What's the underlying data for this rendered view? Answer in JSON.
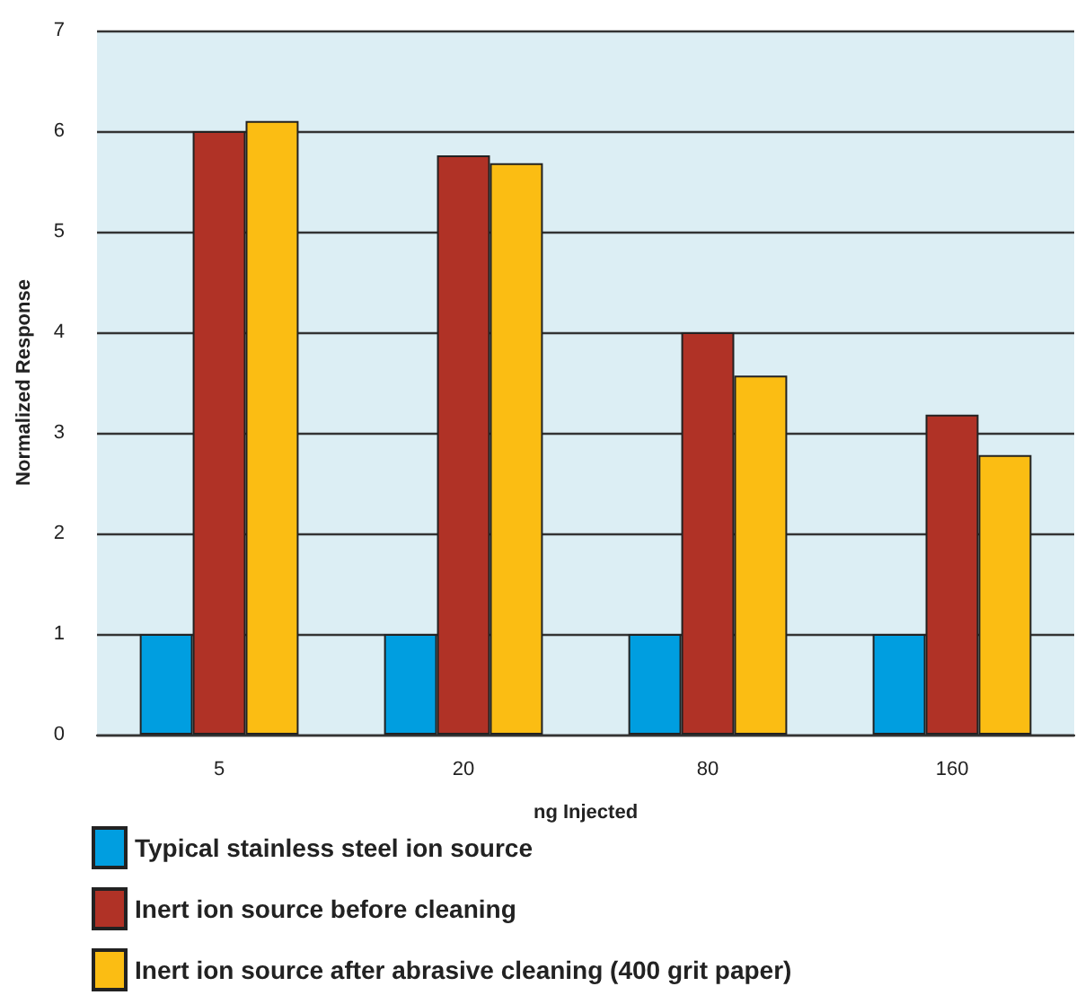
{
  "chart_data": {
    "type": "bar",
    "xlabel": "ng Injected",
    "ylabel": "Normalized Response",
    "categories": [
      "5",
      "20",
      "80",
      "160"
    ],
    "series": [
      {
        "name": "Typical stainless steel ion source",
        "color": "#009ee0",
        "values": [
          1,
          1,
          1,
          1
        ]
      },
      {
        "name": "Inert ion source before cleaning",
        "color": "#b03226",
        "values": [
          6.0,
          5.76,
          4.0,
          3.18
        ]
      },
      {
        "name": "Inert ion source after abrasive cleaning (400 grit paper)",
        "color": "#fbbd13",
        "values": [
          6.1,
          5.68,
          3.57,
          2.78
        ]
      }
    ],
    "ylim": [
      0,
      7
    ],
    "yticks": [
      0,
      1,
      2,
      3,
      4,
      5,
      6,
      7
    ],
    "grid": "y",
    "legend": "bottom left"
  }
}
